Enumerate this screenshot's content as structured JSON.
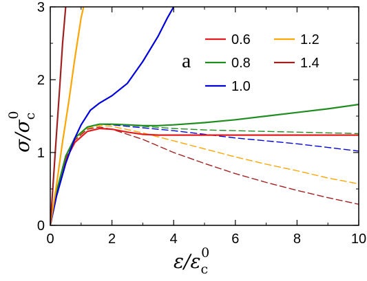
{
  "chart_data": {
    "type": "line",
    "annotation": "a",
    "xlabel": {
      "symbol": "ε/ε",
      "sub": "c",
      "sup": "0"
    },
    "ylabel": {
      "symbol": "σ/σ",
      "sub": "c",
      "sup": "0"
    },
    "xlim": [
      0,
      10
    ],
    "ylim": [
      0,
      3
    ],
    "xticks": [
      0,
      2,
      4,
      6,
      8,
      10
    ],
    "yticks": [
      0,
      1,
      2,
      3
    ],
    "grid": false,
    "legend_position": "top-right",
    "legend": [
      {
        "label": "0.6",
        "color": "#e41a1c"
      },
      {
        "label": "1.2",
        "color": "#ffa500"
      },
      {
        "label": "0.8",
        "color": "#1f8c1f"
      },
      {
        "label": "1.4",
        "color": "#a02020"
      },
      {
        "label": "1.0",
        "color": "#0000dd"
      }
    ],
    "series": [
      {
        "name": "0.6",
        "style": "solid",
        "color": "#e41a1c",
        "x": [
          0,
          0.2,
          0.5,
          0.8,
          1.2,
          1.6,
          2.0,
          2.5,
          3.0,
          3.5,
          4,
          5,
          6,
          7,
          8,
          9,
          10
        ],
        "y": [
          0,
          0.45,
          0.9,
          1.14,
          1.29,
          1.33,
          1.32,
          1.28,
          1.25,
          1.24,
          1.24,
          1.24,
          1.24,
          1.24,
          1.24,
          1.24,
          1.24
        ]
      },
      {
        "name": "0.8",
        "style": "solid",
        "color": "#1f8c1f",
        "x": [
          0,
          0.2,
          0.5,
          0.8,
          1.2,
          1.6,
          2.0,
          2.5,
          3.0,
          3.5,
          4,
          5,
          6,
          7,
          8,
          9,
          10
        ],
        "y": [
          0,
          0.46,
          0.95,
          1.2,
          1.35,
          1.39,
          1.39,
          1.38,
          1.37,
          1.37,
          1.38,
          1.41,
          1.45,
          1.5,
          1.55,
          1.6,
          1.66
        ]
      },
      {
        "name": "1.0",
        "style": "solid",
        "color": "#0000dd",
        "x": [
          0,
          0.2,
          0.5,
          0.8,
          1.0,
          1.3,
          1.6,
          2.0,
          2.5,
          3.0,
          3.5,
          3.8,
          4.0
        ],
        "y": [
          0,
          0.4,
          0.85,
          1.2,
          1.38,
          1.58,
          1.68,
          1.78,
          1.95,
          2.25,
          2.6,
          2.85,
          3.0
        ]
      },
      {
        "name": "1.2",
        "style": "solid",
        "color": "#ffa500",
        "x": [
          0,
          0.2,
          0.4,
          0.6,
          0.8,
          1.0,
          1.08
        ],
        "y": [
          0,
          0.55,
          1.15,
          1.7,
          2.3,
          2.85,
          3.0
        ]
      },
      {
        "name": "1.4",
        "style": "solid",
        "color": "#a02020",
        "x": [
          0,
          0.1,
          0.2,
          0.3,
          0.4,
          0.5
        ],
        "y": [
          0,
          0.62,
          1.25,
          1.85,
          2.5,
          3.0
        ]
      },
      {
        "name": "0.8",
        "style": "dashed",
        "color": "#1f8c1f",
        "x": [
          0,
          0.2,
          0.5,
          0.8,
          1.2,
          1.6,
          2.0,
          3,
          4,
          5,
          6,
          7,
          8,
          9,
          10
        ],
        "y": [
          0,
          0.46,
          0.95,
          1.2,
          1.35,
          1.39,
          1.39,
          1.36,
          1.33,
          1.31,
          1.3,
          1.29,
          1.28,
          1.27,
          1.26
        ]
      },
      {
        "name": "1.0",
        "style": "dashed",
        "color": "#0000dd",
        "x": [
          0,
          0.2,
          0.5,
          0.8,
          1.2,
          1.6,
          2.0,
          3,
          4,
          5,
          6,
          7,
          8,
          9,
          10
        ],
        "y": [
          0,
          0.46,
          0.95,
          1.2,
          1.35,
          1.39,
          1.38,
          1.34,
          1.3,
          1.25,
          1.2,
          1.16,
          1.12,
          1.07,
          1.02
        ]
      },
      {
        "name": "1.2",
        "style": "dashed",
        "color": "#ffa500",
        "x": [
          0,
          0.2,
          0.5,
          0.8,
          1.2,
          1.6,
          2.0,
          3,
          4,
          5,
          6,
          7,
          8,
          9,
          10
        ],
        "y": [
          0,
          0.45,
          0.93,
          1.18,
          1.33,
          1.37,
          1.36,
          1.27,
          1.16,
          1.05,
          0.94,
          0.84,
          0.75,
          0.65,
          0.57
        ]
      },
      {
        "name": "1.4",
        "style": "dashed",
        "color": "#a02020",
        "x": [
          0,
          0.2,
          0.5,
          0.8,
          1.2,
          1.6,
          2.0,
          3,
          4,
          5,
          6,
          7,
          8,
          9,
          10
        ],
        "y": [
          0,
          0.45,
          0.92,
          1.17,
          1.32,
          1.35,
          1.32,
          1.18,
          1.0,
          0.85,
          0.71,
          0.59,
          0.48,
          0.38,
          0.29
        ]
      }
    ]
  }
}
